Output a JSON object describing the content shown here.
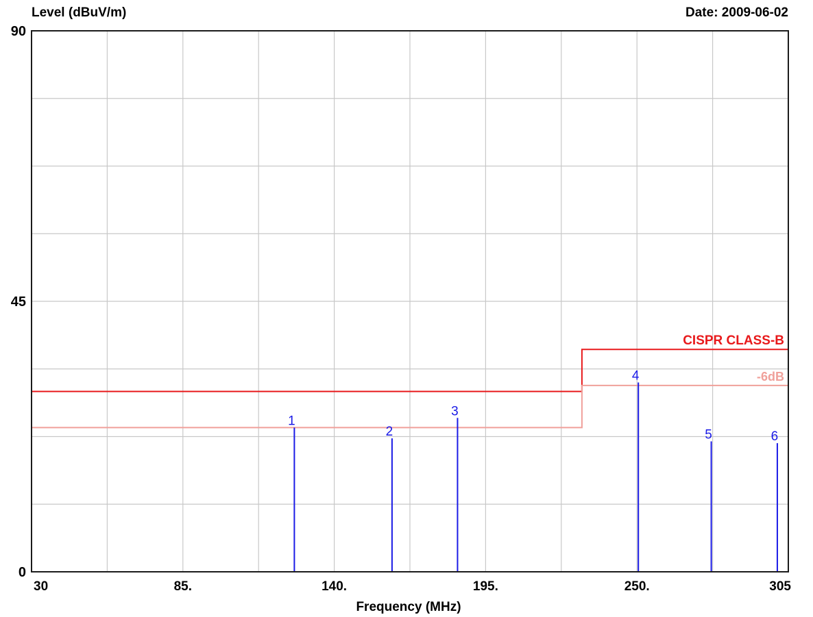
{
  "header": {
    "ylabel": "Level (dBuV/m)",
    "date": "Date: 2009-06-02"
  },
  "colors": {
    "limit": "#e8191b",
    "limit_minus6": "#f0a09a",
    "marker": "#1a1ae6",
    "grid": "#c8c8c8"
  },
  "chart_data": {
    "type": "line",
    "xlabel": "Frequency (MHz)",
    "ylabel": "Level (dBuV/m)",
    "xlim": [
      30,
      305
    ],
    "ylim": [
      0,
      90
    ],
    "x_tick_labels": [
      "30",
      "85.",
      "140.",
      "195.",
      "250.",
      "305"
    ],
    "x_tick_values": [
      30,
      85,
      140,
      195,
      250,
      305
    ],
    "y_tick_labels": [
      "0",
      "45",
      "90"
    ],
    "y_tick_values": [
      0,
      45,
      90
    ],
    "grid": true,
    "limit_lines": [
      {
        "name": "CISPR CLASS-B",
        "points": [
          [
            30,
            30
          ],
          [
            230,
            30
          ],
          [
            230,
            37
          ],
          [
            305,
            37
          ]
        ]
      },
      {
        "name": "-6dB",
        "points": [
          [
            30,
            24
          ],
          [
            230,
            24
          ],
          [
            230,
            31
          ],
          [
            305,
            31
          ]
        ]
      }
    ],
    "markers": [
      {
        "label": "1",
        "x": 125.5,
        "y": 24.0
      },
      {
        "label": "2",
        "x": 161.0,
        "y": 22.2
      },
      {
        "label": "3",
        "x": 184.8,
        "y": 25.6
      },
      {
        "label": "4",
        "x": 250.5,
        "y": 31.5
      },
      {
        "label": "5",
        "x": 277.0,
        "y": 21.7
      },
      {
        "label": "6",
        "x": 301.0,
        "y": 21.4
      }
    ]
  }
}
